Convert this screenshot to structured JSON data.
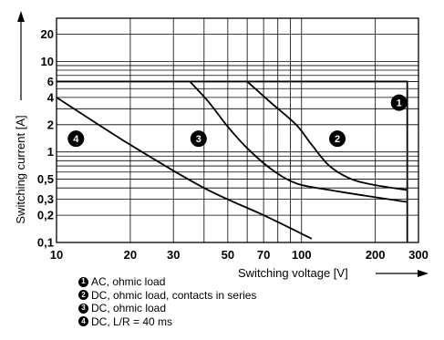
{
  "chart_data": {
    "type": "line",
    "title": "",
    "xlabel": "Switching voltage [V]",
    "ylabel": "Switching current [A]",
    "x_scale": "log",
    "y_scale": "log",
    "xlim": [
      10,
      300
    ],
    "ylim": [
      0.1,
      30
    ],
    "grid": true,
    "x_ticks": [
      {
        "value": 10,
        "label": "10"
      },
      {
        "value": 20,
        "label": "20"
      },
      {
        "value": 30,
        "label": "30"
      },
      {
        "value": 50,
        "label": "50"
      },
      {
        "value": 70,
        "label": "70"
      },
      {
        "value": 100,
        "label": "100"
      },
      {
        "value": 200,
        "label": "200"
      },
      {
        "value": 300,
        "label": "300"
      }
    ],
    "y_ticks": [
      {
        "value": 0.1,
        "label": "0,1"
      },
      {
        "value": 0.2,
        "label": "0,2"
      },
      {
        "value": 0.3,
        "label": "0,3"
      },
      {
        "value": 0.5,
        "label": "0,5"
      },
      {
        "value": 1,
        "label": "1"
      },
      {
        "value": 2,
        "label": "2"
      },
      {
        "value": 4,
        "label": "4"
      },
      {
        "value": 6,
        "label": "6"
      },
      {
        "value": 10,
        "label": "10"
      },
      {
        "value": 20,
        "label": "20"
      }
    ],
    "series": [
      {
        "badge": "1",
        "name": "AC, ohmic load",
        "points": [
          [
            10,
            6
          ],
          [
            270,
            6
          ],
          [
            270,
            0.1
          ]
        ]
      },
      {
        "badge": "2",
        "name": "DC, ohmic load, contacts in series",
        "points": [
          [
            60,
            6
          ],
          [
            75,
            3.5
          ],
          [
            95,
            2
          ],
          [
            110,
            1.2
          ],
          [
            130,
            0.7
          ],
          [
            160,
            0.5
          ],
          [
            200,
            0.43
          ],
          [
            270,
            0.38
          ]
        ]
      },
      {
        "badge": "3",
        "name": "DC, ohmic load",
        "points": [
          [
            35,
            6
          ],
          [
            42,
            3.5
          ],
          [
            50,
            1.9
          ],
          [
            60,
            1.1
          ],
          [
            75,
            0.65
          ],
          [
            95,
            0.45
          ],
          [
            130,
            0.38
          ],
          [
            180,
            0.33
          ],
          [
            270,
            0.28
          ]
        ]
      },
      {
        "badge": "4",
        "name": "DC, L/R = 40 ms",
        "points": [
          [
            10,
            4
          ],
          [
            20,
            1.2
          ],
          [
            40,
            0.4
          ],
          [
            70,
            0.2
          ],
          [
            110,
            0.11
          ]
        ]
      }
    ],
    "callouts": [
      {
        "label": "1",
        "x": 250,
        "y": 3.5
      },
      {
        "label": "2",
        "x": 140,
        "y": 1.4
      },
      {
        "label": "3",
        "x": 38,
        "y": 1.4
      },
      {
        "label": "4",
        "x": 12,
        "y": 1.4
      }
    ]
  },
  "legend": [
    {
      "badge": "1",
      "text": "AC, ohmic load"
    },
    {
      "badge": "2",
      "text": "DC, ohmic load, contacts in series"
    },
    {
      "badge": "3",
      "text": "DC, ohmic load"
    },
    {
      "badge": "4",
      "text": "DC, L/R = 40 ms"
    }
  ]
}
